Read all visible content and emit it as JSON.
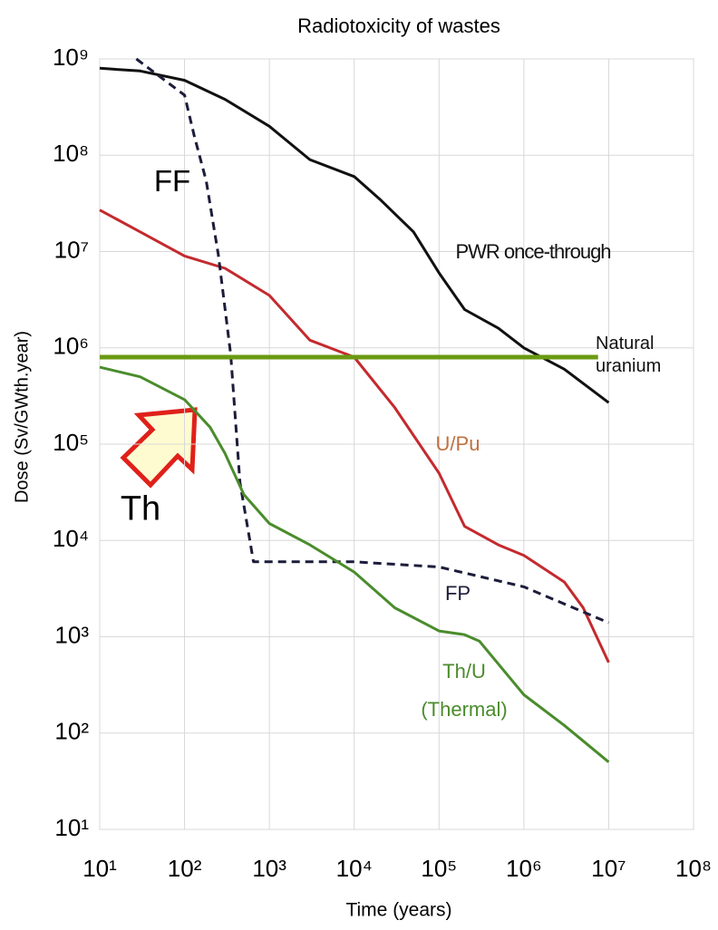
{
  "chart_data": {
    "type": "line",
    "title": "Radiotoxicity of wastes",
    "xlabel": "Time (years)",
    "ylabel": "Dose (Sv/GWth.year)",
    "xscale": "log",
    "yscale": "log",
    "grid": true,
    "xlim": [
      10,
      100000000
    ],
    "ylim": [
      10,
      1000000000
    ],
    "xticks": [
      {
        "value": 10,
        "label": "10¹"
      },
      {
        "value": 100,
        "label": "10²"
      },
      {
        "value": 1000,
        "label": "10³"
      },
      {
        "value": 10000,
        "label": "10⁴"
      },
      {
        "value": 100000,
        "label": "10⁵"
      },
      {
        "value": 1000000,
        "label": "10⁶"
      },
      {
        "value": 10000000,
        "label": "10⁷"
      },
      {
        "value": 100000000,
        "label": "10⁸"
      }
    ],
    "yticks": [
      {
        "value": 10,
        "label": "10¹"
      },
      {
        "value": 100,
        "label": "10²"
      },
      {
        "value": 1000,
        "label": "10³"
      },
      {
        "value": 10000,
        "label": "10⁴"
      },
      {
        "value": 100000,
        "label": "10⁵"
      },
      {
        "value": 1000000,
        "label": "10⁶"
      },
      {
        "value": 10000000,
        "label": "10⁷"
      },
      {
        "value": 100000000,
        "label": "10⁸"
      },
      {
        "value": 1000000000,
        "label": "10⁹"
      }
    ],
    "series": [
      {
        "name": "PWR once-through",
        "color": "#111111",
        "dash": false,
        "x": [
          10,
          30,
          100,
          300,
          1000,
          3000,
          10000,
          20000,
          50000,
          100000,
          200000,
          500000,
          1000000,
          3000000,
          10000000
        ],
        "values": [
          800000000,
          750000000,
          600000000,
          380000000,
          200000000,
          90000000,
          60000000,
          35000000,
          16000000,
          6000000,
          2500000,
          1600000,
          1000000,
          600000,
          270000
        ]
      },
      {
        "name": "U/Pu",
        "color": "#c42a2e",
        "dash": false,
        "x": [
          10,
          30,
          100,
          300,
          1000,
          3000,
          10000,
          30000,
          100000,
          200000,
          500000,
          1000000,
          3000000,
          5000000,
          10000000
        ],
        "values": [
          27000000,
          16000000,
          9000000,
          6700000,
          3500000,
          1200000,
          800000,
          240000,
          50000,
          14000,
          9000,
          7000,
          3700,
          2000,
          540
        ]
      },
      {
        "name": "FP",
        "color": "#1c1c3a",
        "dash": true,
        "x": [
          27,
          100,
          130,
          180,
          250,
          350,
          450,
          650,
          1000,
          10000,
          100000,
          1000000,
          10000000
        ],
        "values": [
          1000000000,
          420000000,
          160000000,
          54000000,
          9300000,
          850000,
          40000,
          6000,
          6000,
          6000,
          5300,
          3300,
          1400
        ]
      },
      {
        "name": "Th/U (Thermal)",
        "color": "#4a8c2c",
        "dash": false,
        "x": [
          10,
          30,
          100,
          200,
          300,
          500,
          1000,
          3000,
          10000,
          30000,
          100000,
          200000,
          300000,
          1000000,
          3000000,
          10000000
        ],
        "values": [
          630000,
          500000,
          290000,
          150000,
          80000,
          30000,
          15000,
          9000,
          4700,
          2000,
          1150,
          1050,
          900,
          250,
          120,
          50
        ]
      },
      {
        "name": "Natural uranium",
        "color": "#6a9a12",
        "dash": false,
        "thick": true,
        "x": [
          10,
          7500000
        ],
        "values": [
          800000,
          800000
        ]
      }
    ],
    "annotations": [
      "FF",
      "Th"
    ]
  }
}
